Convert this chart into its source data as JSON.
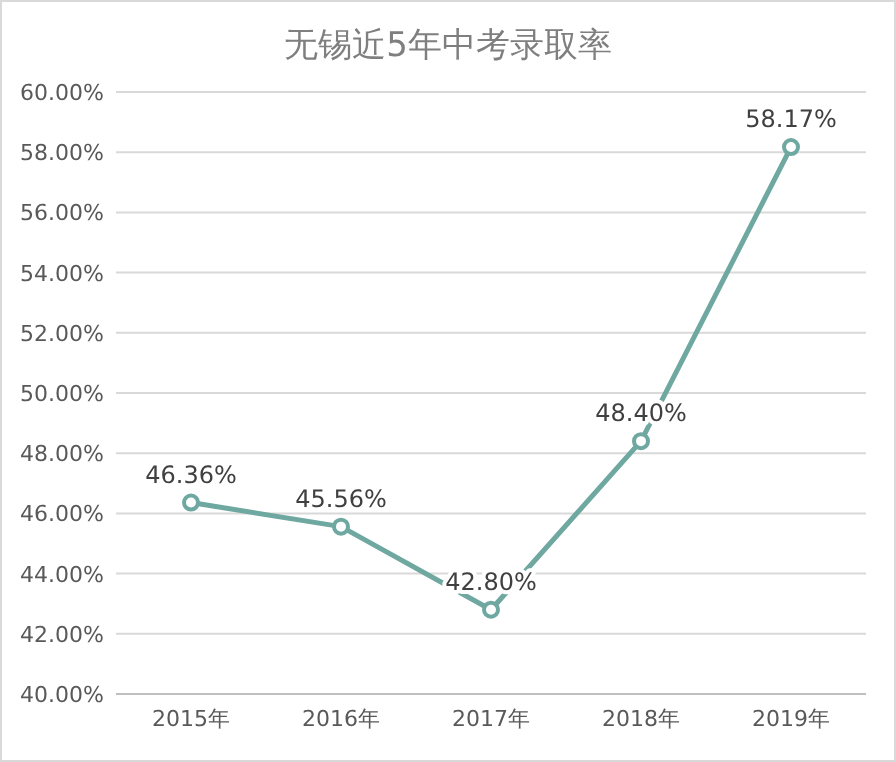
{
  "chart_data": {
    "type": "line",
    "title": "无锡近5年中考录取率",
    "categories": [
      "2015年",
      "2016年",
      "2017年",
      "2018年",
      "2019年"
    ],
    "series": [
      {
        "color": "#6fa8a0",
        "values": [
          46.36,
          45.56,
          42.8,
          48.4,
          58.17
        ],
        "value_labels": [
          "46.36%",
          "45.56%",
          "42.80%",
          "48.40%",
          "58.17%"
        ]
      }
    ],
    "ylim": [
      40,
      60
    ],
    "yticks": [
      {
        "value": 40,
        "label": "40.00%"
      },
      {
        "value": 42,
        "label": "42.00%"
      },
      {
        "value": 44,
        "label": "44.00%"
      },
      {
        "value": 46,
        "label": "46.00%"
      },
      {
        "value": 48,
        "label": "48.00%"
      },
      {
        "value": 50,
        "label": "50.00%"
      },
      {
        "value": 52,
        "label": "52.00%"
      },
      {
        "value": 54,
        "label": "54.00%"
      },
      {
        "value": 56,
        "label": "56.00%"
      },
      {
        "value": 58,
        "label": "58.00%"
      },
      {
        "value": 60,
        "label": "60.00%"
      }
    ],
    "grid": "y",
    "marker": "circle",
    "line_style": "solid"
  }
}
